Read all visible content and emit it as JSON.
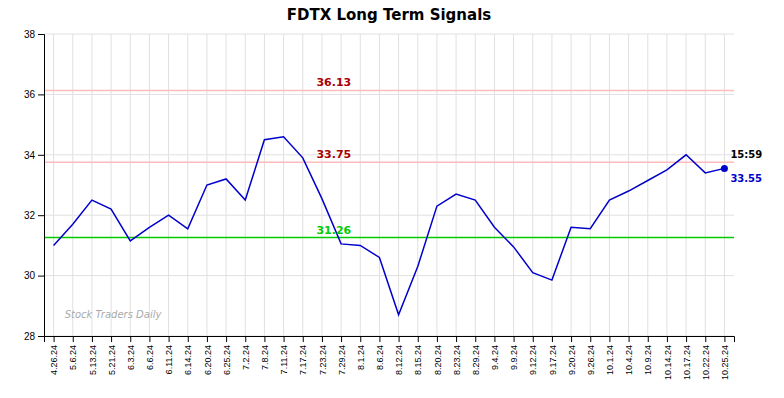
{
  "chart_data": {
    "type": "line",
    "title": "FDTX Long Term Signals",
    "categories": [
      "4.26.24",
      "5.6.24",
      "5.13.24",
      "5.21.24",
      "6.3.24",
      "6.6.24",
      "6.11.24",
      "6.14.24",
      "6.20.24",
      "6.25.24",
      "7.2.24",
      "7.8.24",
      "7.11.24",
      "7.17.24",
      "7.23.24",
      "7.29.24",
      "8.1.24",
      "8.6.24",
      "8.12.24",
      "8.15.24",
      "8.20.24",
      "8.23.24",
      "8.29.24",
      "9.4.24",
      "9.9.24",
      "9.12.24",
      "9.17.24",
      "9.20.24",
      "9.26.24",
      "10.1.24",
      "10.4.24",
      "10.9.24",
      "10.14.24",
      "10.17.24",
      "10.22.24",
      "10.25.24"
    ],
    "values": [
      31.0,
      31.7,
      32.5,
      32.2,
      31.15,
      31.6,
      32.0,
      31.55,
      33.0,
      33.2,
      32.5,
      34.5,
      34.6,
      33.9,
      32.55,
      31.05,
      31.0,
      30.6,
      28.7,
      30.3,
      32.3,
      32.7,
      32.5,
      31.6,
      30.95,
      30.1,
      29.85,
      31.6,
      31.55,
      32.5,
      32.8,
      33.15,
      33.5,
      34.0,
      33.4,
      33.55
    ],
    "color": "#0000cc",
    "ylim": [
      28,
      38
    ],
    "yticks": [
      28,
      30,
      32,
      34,
      36,
      38
    ],
    "grid": true,
    "reference_lines": [
      {
        "value": 36.13,
        "color": "#ffbbbb",
        "label_color": "#aa0000"
      },
      {
        "value": 33.75,
        "color": "#ffbbbb",
        "label_color": "#aa0000"
      },
      {
        "value": 31.26,
        "color": "#00cc00",
        "label_color": "#00cc00"
      }
    ],
    "annotations": [
      {
        "text": "15:59",
        "category": "10.25.24"
      },
      {
        "text": "33.55",
        "category": "10.25.24",
        "value": 33.55,
        "color": "#0000cc"
      }
    ],
    "watermark": "Stock Traders Daily"
  }
}
